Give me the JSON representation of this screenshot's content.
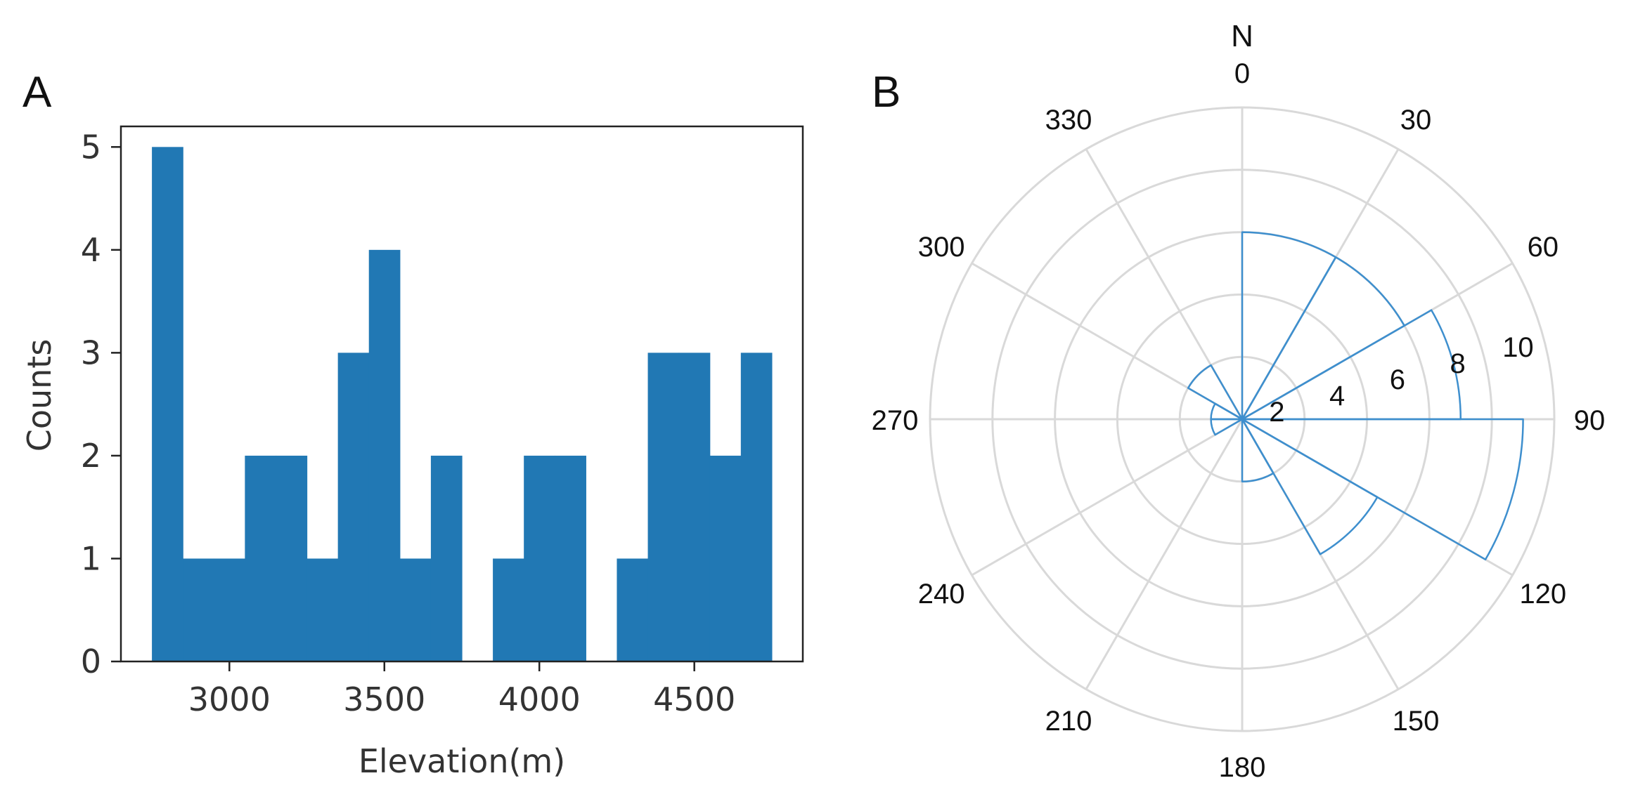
{
  "chart_data": [
    {
      "panel": "A",
      "type": "bar",
      "subtype": "histogram",
      "bin_width": 100,
      "x": [
        2800,
        2900,
        3000,
        3100,
        3200,
        3300,
        3400,
        3500,
        3600,
        3700,
        3800,
        3900,
        4000,
        4100,
        4200,
        4300,
        4400,
        4500,
        4600,
        4700
      ],
      "values": [
        5,
        1,
        1,
        2,
        2,
        1,
        3,
        4,
        1,
        2,
        0,
        1,
        2,
        2,
        0,
        1,
        3,
        3,
        2,
        3
      ],
      "title": "",
      "xlabel": "Elevation(m)",
      "ylabel": "Counts",
      "xticks": [
        "3000",
        "3500",
        "4000",
        "4500"
      ],
      "xtick_values": [
        3000,
        3500,
        4000,
        4500
      ],
      "yticks": [
        "0",
        "1",
        "2",
        "3",
        "4",
        "5"
      ],
      "xlim": [
        2650,
        4850
      ],
      "ylim": [
        0,
        5.2
      ],
      "color": "#2178b4"
    },
    {
      "panel": "B",
      "type": "rose",
      "title": "",
      "north_label": "N",
      "angle_labels": [
        "0",
        "30",
        "60",
        "90",
        "120",
        "150",
        "180",
        "210",
        "240",
        "270",
        "300",
        "330"
      ],
      "angle_values": [
        0,
        30,
        60,
        90,
        120,
        150,
        180,
        210,
        240,
        270,
        300,
        330
      ],
      "radial_ticks": [
        "2",
        "4",
        "6",
        "8",
        "10"
      ],
      "radial_tick_values": [
        2,
        4,
        6,
        8,
        10
      ],
      "rmax": 10,
      "bin_width_deg": 30,
      "directions": [
        0,
        30,
        60,
        90,
        120,
        150,
        180,
        210,
        240,
        270,
        300,
        330
      ],
      "values": [
        6,
        6,
        7,
        9,
        5,
        2,
        0,
        0,
        1,
        1,
        2,
        0
      ],
      "line_color": "#3e8fce",
      "grid_color": "#d9d9d9"
    }
  ]
}
